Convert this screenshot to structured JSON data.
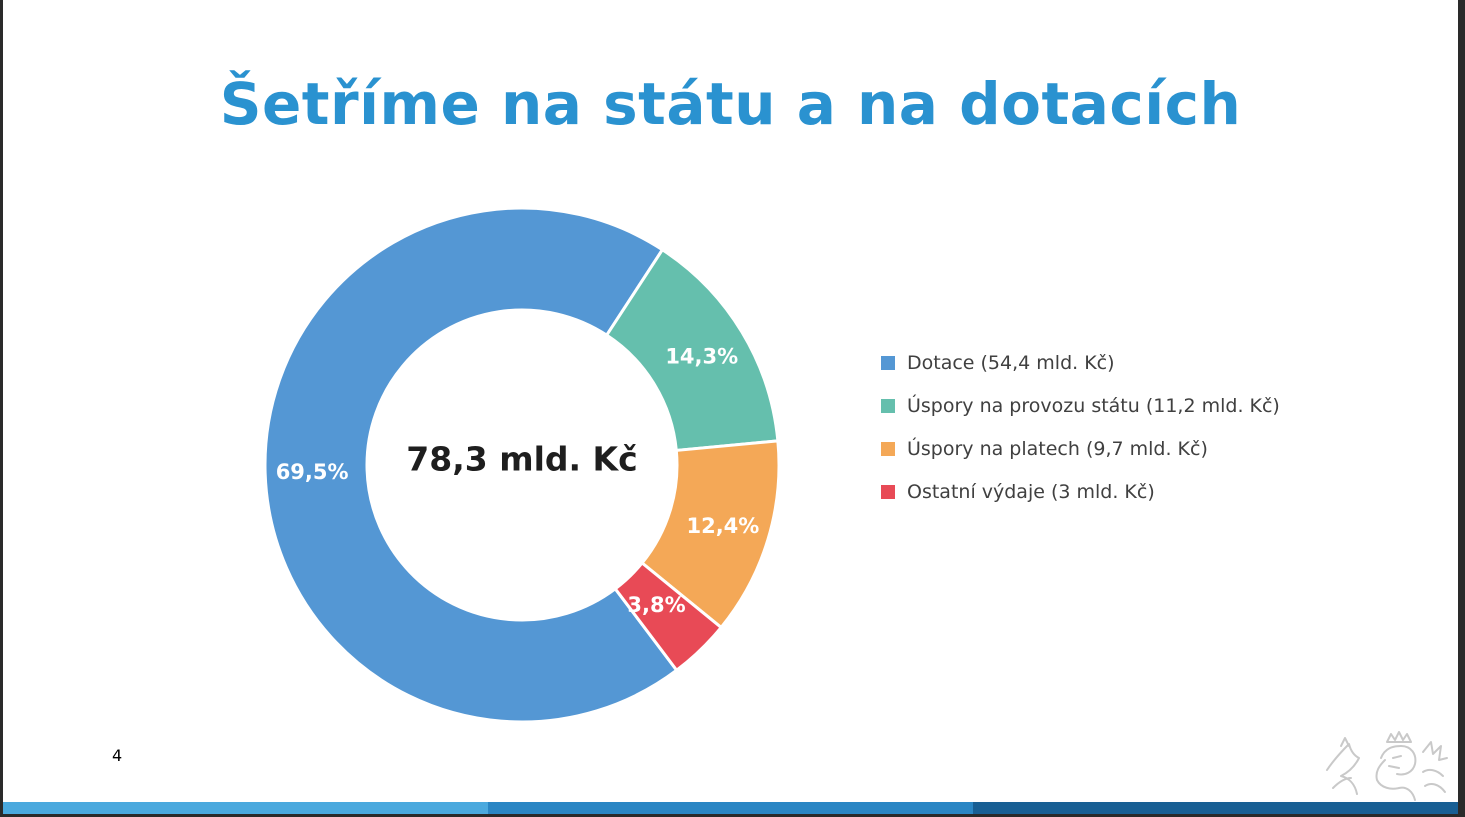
{
  "slide": {
    "title": "Šetříme na státu a na dotacích",
    "page_number": "4",
    "bar_colors": [
      "#4aa9de",
      "#2a86c4",
      "#185f94"
    ],
    "emblem_icon": "czech-lion-emblem-icon"
  },
  "chart_data": {
    "type": "pie",
    "variant": "donut",
    "center_label": "78,3 mld. Kč",
    "legend_position": "right",
    "categories": [
      "Dotace (54,4 mld. Kč)",
      "Úspory na provozu státu (11,2 mld. Kč)",
      "Úspory na platech (9,7 mld. Kč)",
      "Ostatní výdaje (3 mld. Kč)"
    ],
    "values": [
      54.4,
      11.2,
      9.7,
      3
    ],
    "percent_labels": [
      "69,5%",
      "14,3%",
      "12,4%",
      "3,8%"
    ],
    "colors": [
      "#5497d4",
      "#65bfad",
      "#f4a857",
      "#e84a56"
    ]
  }
}
